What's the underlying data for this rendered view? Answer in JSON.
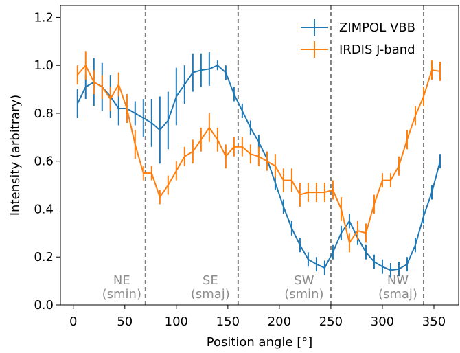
{
  "chart_data": {
    "type": "errorbar_line",
    "xlabel": "Position angle [°]",
    "ylabel": "Intensity (arbitrary)",
    "x": [
      4,
      12,
      20,
      28,
      36,
      44,
      52,
      60,
      68,
      76,
      84,
      92,
      100,
      108,
      116,
      124,
      132,
      140,
      148,
      156,
      164,
      172,
      180,
      188,
      196,
      204,
      212,
      220,
      228,
      236,
      244,
      252,
      260,
      268,
      276,
      284,
      292,
      300,
      308,
      316,
      324,
      332,
      340,
      348,
      356
    ],
    "series": [
      {
        "name": "ZIMPOL VBB",
        "color": "#1f77b4",
        "values": [
          0.84,
          0.91,
          0.93,
          0.91,
          0.87,
          0.82,
          0.82,
          0.8,
          0.78,
          0.76,
          0.73,
          0.77,
          0.87,
          0.92,
          0.97,
          0.98,
          0.985,
          1.0,
          0.97,
          0.88,
          0.81,
          0.74,
          0.68,
          0.61,
          0.51,
          0.41,
          0.32,
          0.25,
          0.19,
          0.17,
          0.155,
          0.22,
          0.3,
          0.35,
          0.28,
          0.22,
          0.18,
          0.16,
          0.145,
          0.15,
          0.17,
          0.25,
          0.37,
          0.47,
          0.6
        ],
        "errors": [
          0.06,
          0.05,
          0.1,
          0.1,
          0.09,
          0.07,
          0.06,
          0.05,
          0.08,
          0.1,
          0.14,
          0.12,
          0.12,
          0.08,
          0.08,
          0.07,
          0.07,
          0.02,
          0.03,
          0.03,
          0.03,
          0.03,
          0.03,
          0.03,
          0.03,
          0.03,
          0.03,
          0.03,
          0.03,
          0.03,
          0.03,
          0.03,
          0.03,
          0.03,
          0.03,
          0.03,
          0.03,
          0.03,
          0.03,
          0.03,
          0.03,
          0.03,
          0.03,
          0.03,
          0.03
        ]
      },
      {
        "name": "IRDIS J-band",
        "color": "#ff7f0e",
        "values": [
          0.96,
          1.0,
          0.93,
          0.91,
          0.86,
          0.92,
          0.82,
          0.67,
          0.55,
          0.55,
          0.45,
          0.5,
          0.56,
          0.62,
          0.64,
          0.69,
          0.74,
          0.69,
          0.62,
          0.66,
          0.66,
          0.63,
          0.62,
          0.6,
          0.58,
          0.52,
          0.52,
          0.46,
          0.47,
          0.47,
          0.47,
          0.48,
          0.4,
          0.26,
          0.31,
          0.3,
          0.42,
          0.52,
          0.52,
          0.58,
          0.69,
          0.79,
          0.87,
          0.98,
          0.975
        ],
        "errors": [
          0.04,
          0.06,
          0.05,
          0.05,
          0.05,
          0.05,
          0.06,
          0.06,
          0.03,
          0.03,
          0.03,
          0.04,
          0.04,
          0.04,
          0.05,
          0.05,
          0.06,
          0.05,
          0.05,
          0.04,
          0.04,
          0.04,
          0.04,
          0.04,
          0.05,
          0.05,
          0.05,
          0.05,
          0.04,
          0.04,
          0.04,
          0.04,
          0.05,
          0.04,
          0.04,
          0.04,
          0.04,
          0.03,
          0.03,
          0.04,
          0.04,
          0.04,
          0.04,
          0.04,
          0.04
        ]
      }
    ],
    "vlines": [
      70,
      160,
      250,
      340
    ],
    "annotations": [
      {
        "lines": [
          "NE",
          "(smin)"
        ],
        "x": 47
      },
      {
        "lines": [
          "SE",
          "(smaj)"
        ],
        "x": 133
      },
      {
        "lines": [
          "SW",
          "(smin)"
        ],
        "x": 224
      },
      {
        "lines": [
          "NW",
          "(smaj)"
        ],
        "x": 315
      }
    ],
    "xlim": [
      -12.5,
      374
    ],
    "ylim": [
      0,
      1.25
    ],
    "xticks": [
      0,
      50,
      100,
      150,
      200,
      250,
      300,
      350
    ],
    "yticks": [
      {
        "value": 0,
        "label": "0.0"
      },
      0.2,
      0.4,
      0.6,
      0.8,
      {
        "value": 1,
        "label": "1.0"
      },
      1.2
    ],
    "legend": "upper right"
  }
}
